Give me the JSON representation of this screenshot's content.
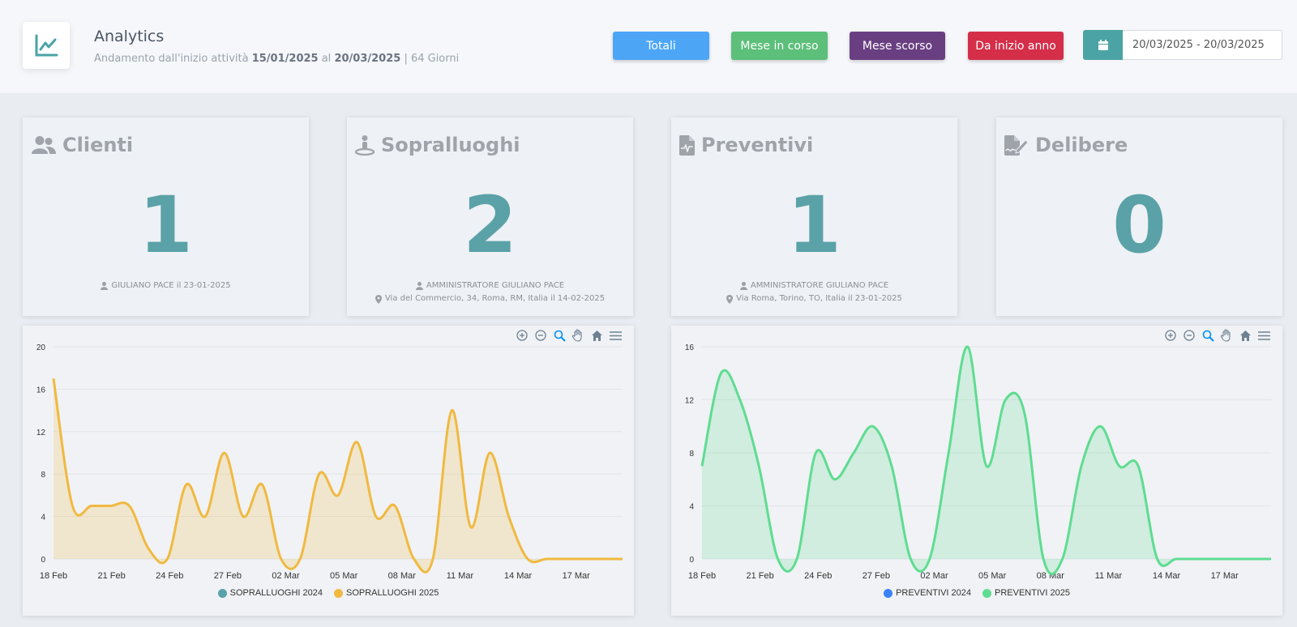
{
  "header": {
    "title": "Analytics",
    "subtitle_prefix": "Andamento dall'inizio attività",
    "start_date": "15/01/2025",
    "subtitle_mid": "al",
    "end_date": "20/03/2025",
    "subtitle_suffix": "| 64 Giorni"
  },
  "filters": {
    "totali": "Totali",
    "mese_corso": "Mese in corso",
    "mese_scorso": "Mese scorso",
    "da_inizio_anno": "Da inizio anno",
    "date_range": "20/03/2025 - 20/03/2025"
  },
  "cards": [
    {
      "title": "Clienti",
      "count": "1",
      "line1": "GIULIANO PACE il 23-01-2025",
      "line2": ""
    },
    {
      "title": "Sopralluoghi",
      "count": "2",
      "line1": "AMMINISTRATORE GIULIANO PACE",
      "line2": "Via del Commercio, 34, Roma, RM, Italia il 14-02-2025"
    },
    {
      "title": "Preventivi",
      "count": "1",
      "line1": "AMMINISTRATORE GIULIANO PACE",
      "line2": "Via Roma, Torino, TO, Italia il 23-01-2025"
    },
    {
      "title": "Delibere",
      "count": "0",
      "line1": "",
      "line2": ""
    }
  ],
  "colors": {
    "accent": "#5aa2a8",
    "sopralluoghi_2024": "#5aa2a8",
    "sopralluoghi_2025": "#f0b941",
    "preventivi_2024": "#3b82f6",
    "preventivi_2025": "#5fdc91"
  },
  "chart_data": [
    {
      "type": "area",
      "x_labels": [
        "18 Feb",
        "21 Feb",
        "24 Feb",
        "27 Feb",
        "02 Mar",
        "05 Mar",
        "08 Mar",
        "11 Mar",
        "14 Mar",
        "17 Mar"
      ],
      "ylim": [
        0,
        20
      ],
      "yticks": [
        0,
        4,
        8,
        12,
        16,
        20
      ],
      "grid": true,
      "legend_position": "bottom",
      "series": [
        {
          "name": "SOPRALLUOGHI 2024",
          "values": []
        },
        {
          "name": "SOPRALLUOGHI 2025",
          "values": [
            17,
            5,
            5,
            5,
            5,
            1,
            0,
            7,
            4,
            10,
            4,
            7,
            0,
            0,
            8,
            6,
            11,
            4,
            5,
            0,
            0,
            14,
            3,
            10,
            4,
            0,
            0,
            0,
            0,
            0,
            0
          ]
        }
      ]
    },
    {
      "type": "area",
      "x_labels": [
        "18 Feb",
        "21 Feb",
        "24 Feb",
        "27 Feb",
        "02 Mar",
        "05 Mar",
        "08 Mar",
        "11 Mar",
        "14 Mar",
        "17 Mar"
      ],
      "ylim": [
        0,
        16
      ],
      "yticks": [
        0,
        4,
        8,
        12,
        16
      ],
      "grid": true,
      "legend_position": "bottom",
      "series": [
        {
          "name": "PREVENTIVI 2024",
          "values": []
        },
        {
          "name": "PREVENTIVI 2025",
          "values": [
            7,
            14,
            12,
            7,
            0,
            0,
            8,
            6,
            8,
            10,
            7,
            0,
            0,
            8,
            16,
            7,
            12,
            11,
            0,
            0,
            7,
            10,
            7,
            7,
            0,
            0,
            0,
            0,
            0,
            0,
            0
          ]
        }
      ]
    }
  ]
}
